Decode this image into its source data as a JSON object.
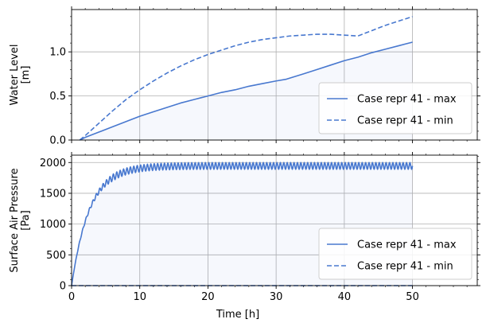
{
  "chart_data": [
    {
      "type": "line",
      "panel": "top",
      "ylabel_lines": [
        "Water Level",
        "[m]"
      ],
      "xlabel": "",
      "xlim": [
        0,
        59.5
      ],
      "ylim": [
        0,
        1.48
      ],
      "xticks": [
        0,
        10,
        20,
        30,
        40,
        50
      ],
      "yticks": [
        0.0,
        0.5,
        1.0
      ],
      "ytick_labels": [
        "0.0",
        "0.5",
        "1.0"
      ],
      "show_x_tick_labels": false,
      "grid": true,
      "legend": "lower-right",
      "series": [
        {
          "name": "Case repr 41 - max",
          "style": "solid",
          "x": [
            1.2,
            2,
            4,
            6,
            8,
            10,
            12,
            14,
            16,
            18,
            20,
            22,
            24,
            26,
            28,
            30,
            31.5,
            34,
            36,
            38,
            40,
            42,
            44,
            46,
            48,
            50
          ],
          "y": [
            0.0,
            0.03,
            0.09,
            0.15,
            0.21,
            0.27,
            0.32,
            0.37,
            0.42,
            0.46,
            0.5,
            0.54,
            0.57,
            0.61,
            0.64,
            0.67,
            0.69,
            0.75,
            0.8,
            0.85,
            0.9,
            0.94,
            0.99,
            1.03,
            1.07,
            1.11
          ]
        },
        {
          "name": "Case repr 41 - min",
          "style": "dashed",
          "x": [
            1.2,
            2,
            4,
            6,
            8,
            10,
            12,
            14,
            16,
            18,
            20,
            22,
            24,
            26,
            28,
            30,
            32,
            34,
            36,
            38,
            40,
            42,
            44,
            46,
            48,
            50
          ],
          "y": [
            0.0,
            0.05,
            0.19,
            0.33,
            0.46,
            0.57,
            0.67,
            0.76,
            0.84,
            0.91,
            0.97,
            1.02,
            1.07,
            1.11,
            1.14,
            1.16,
            1.18,
            1.19,
            1.2,
            1.2,
            1.19,
            1.18,
            1.24,
            1.3,
            1.35,
            1.4
          ]
        }
      ],
      "fill": {
        "between": [
          "Case repr 41 - max",
          "zero"
        ],
        "color": "#4878cf"
      },
      "colors": [
        "#4878cf",
        "#4878cf"
      ]
    },
    {
      "type": "line",
      "panel": "bottom",
      "ylabel_lines": [
        "Surface Air Pressure",
        "[Pa]"
      ],
      "xlabel": "Time [h]",
      "xlim": [
        0,
        59.5
      ],
      "ylim": [
        0,
        2120
      ],
      "xticks": [
        0,
        10,
        20,
        30,
        40,
        50
      ],
      "yticks": [
        0,
        500,
        1000,
        1500,
        2000
      ],
      "ytick_labels": [
        "0",
        "500",
        "1000",
        "1500",
        "2000"
      ],
      "grid": true,
      "legend": "lower-right",
      "series": [
        {
          "name": "Case repr 41 - max",
          "style": "solid",
          "envelope": {
            "x_start": 0,
            "x_end": 50,
            "plateau": 1945,
            "rise_time_h": 2.6,
            "oscillation_amplitude": 55,
            "oscillation_period_h": 0.5
          }
        },
        {
          "name": "Case repr 41 - min",
          "style": "dashed",
          "x": [
            0,
            50
          ],
          "y": [
            0,
            0
          ]
        }
      ],
      "colors": [
        "#4878cf",
        "#4878cf"
      ]
    }
  ],
  "legend_entries": [
    "Case repr 41 - max",
    "Case repr 41 - min"
  ]
}
